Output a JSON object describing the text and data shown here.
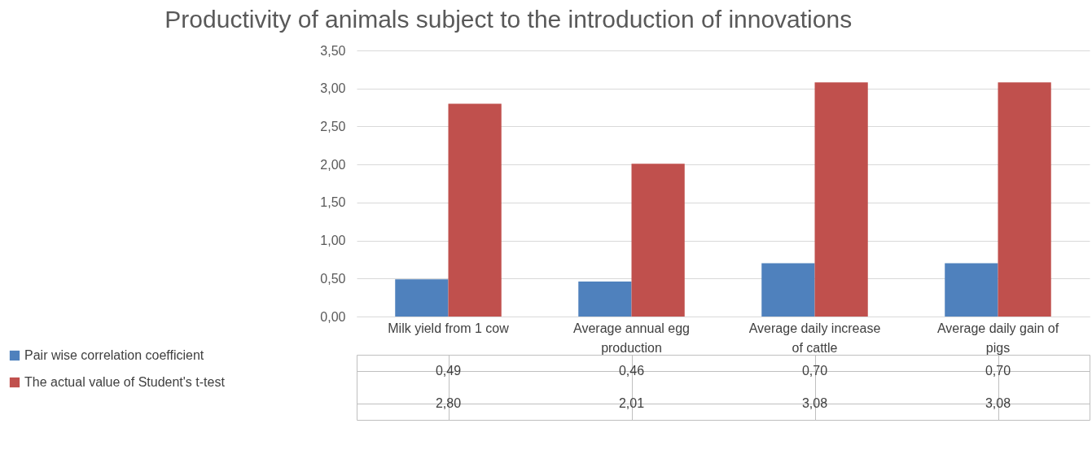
{
  "chart_data": {
    "type": "bar",
    "title": "Productivity of animals subject to the introduction of innovations",
    "categories": [
      "Milk yield from 1 cow",
      "Average annual egg production",
      "Average daily increase of cattle",
      "Average daily gain of pigs"
    ],
    "series": [
      {
        "name": "Pair wise correlation coefficient",
        "color": "#4f81bd",
        "values": [
          0.49,
          0.46,
          0.7,
          0.7
        ],
        "value_labels": [
          "0,49",
          "0,46",
          "0,70",
          "0,70"
        ]
      },
      {
        "name": "The actual value of Student's t-test",
        "color": "#c0504d",
        "values": [
          2.8,
          2.01,
          3.08,
          3.08
        ],
        "value_labels": [
          "2,80",
          "2,01",
          "3,08",
          "3,08"
        ]
      }
    ],
    "ylim": [
      0,
      3.5
    ],
    "yticks": [
      {
        "value": 0,
        "label": "0,00"
      },
      {
        "value": 0.5,
        "label": "0,50"
      },
      {
        "value": 1,
        "label": "1,00"
      },
      {
        "value": 1.5,
        "label": "1,50"
      },
      {
        "value": 2,
        "label": "2,00"
      },
      {
        "value": 2.5,
        "label": "2,50"
      },
      {
        "value": 3,
        "label": "3,00"
      },
      {
        "value": 3.5,
        "label": "3,50"
      }
    ],
    "grid": "y",
    "legend": "bottom left"
  }
}
